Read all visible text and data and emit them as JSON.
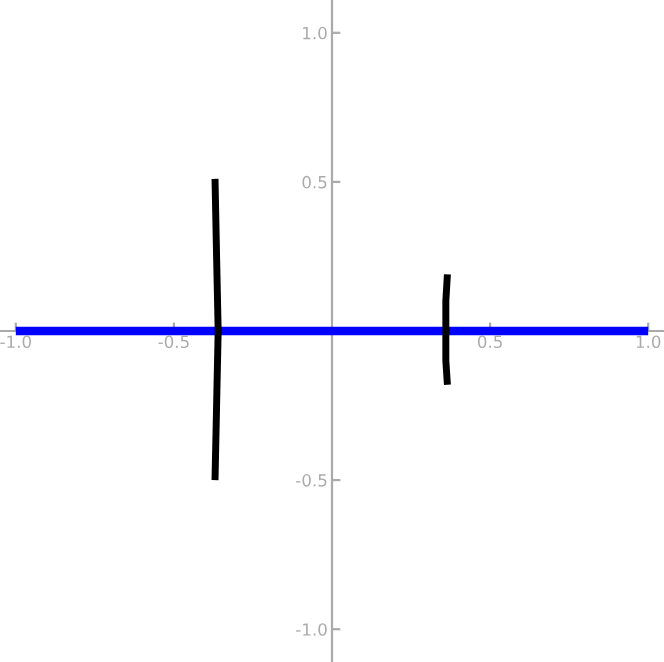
{
  "chart_data": {
    "type": "line",
    "xlim": [
      -1.05,
      1.05
    ],
    "ylim": [
      -1.11,
      1.11
    ],
    "xticks": [
      {
        "value": -1.0,
        "label": "-1.0"
      },
      {
        "value": -0.5,
        "label": "-0.5"
      },
      {
        "value": 0.5,
        "label": "0.5"
      },
      {
        "value": 1.0,
        "label": "1.0"
      }
    ],
    "yticks": [
      {
        "value": -1.0,
        "label": "-1.0"
      },
      {
        "value": -0.5,
        "label": "-0.5"
      },
      {
        "value": 0.5,
        "label": "0.5"
      },
      {
        "value": 1.0,
        "label": "1.0"
      }
    ],
    "grid": false,
    "legend": false,
    "marker": "none",
    "line_style": "solid",
    "series": [
      {
        "color": "#0000ff",
        "x": [
          -1.0,
          1.0
        ],
        "values": [
          0,
          0
        ]
      },
      {
        "color": "#000000",
        "x": [
          -0.37,
          -0.365,
          -0.36,
          -0.365,
          -0.37
        ],
        "values": [
          0.51,
          0.25,
          0,
          -0.25,
          -0.5
        ]
      },
      {
        "color": "#000000",
        "x": [
          0.365,
          0.36,
          0.36,
          0.36,
          0.365
        ],
        "values": [
          0.19,
          0.1,
          0,
          -0.1,
          -0.18
        ]
      }
    ]
  }
}
